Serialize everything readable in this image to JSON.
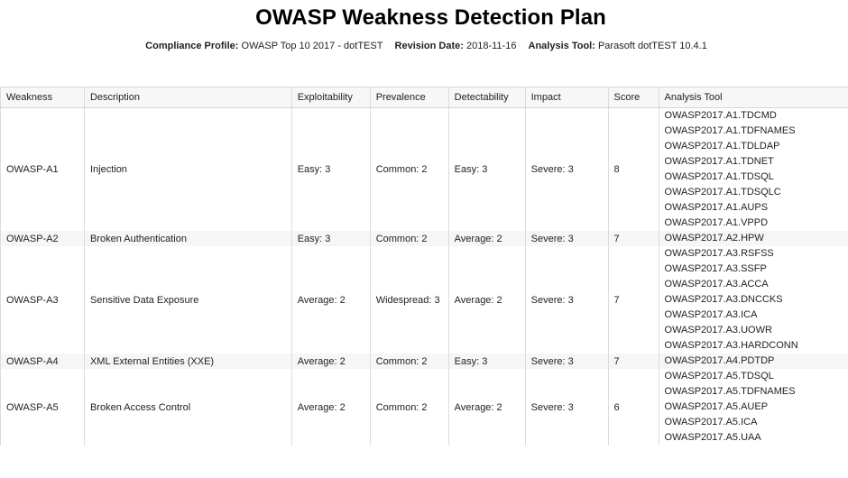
{
  "title": "OWASP Weakness Detection Plan",
  "meta": {
    "compliance_profile_label": "Compliance Profile:",
    "compliance_profile_value": "OWASP Top 10 2017 - dotTEST",
    "revision_date_label": "Revision Date:",
    "revision_date_value": "2018-11-16",
    "analysis_tool_label": "Analysis Tool:",
    "analysis_tool_value": "Parasoft dotTEST 10.4.1"
  },
  "table": {
    "headers": [
      "Weakness",
      "Description",
      "Exploitability",
      "Prevalence",
      "Detectability",
      "Impact",
      "Score",
      "Analysis Tool"
    ],
    "rows": [
      {
        "weakness": "OWASP-A1",
        "description": "Injection",
        "exploitability": "Easy: 3",
        "prevalence": "Common: 2",
        "detectability": "Easy: 3",
        "impact": "Severe: 3",
        "score": "8",
        "tools": [
          "OWASP2017.A1.TDCMD",
          "OWASP2017.A1.TDFNAMES",
          "OWASP2017.A1.TDLDAP",
          "OWASP2017.A1.TDNET",
          "OWASP2017.A1.TDSQL",
          "OWASP2017.A1.TDSQLC",
          "OWASP2017.A1.AUPS",
          "OWASP2017.A1.VPPD"
        ]
      },
      {
        "weakness": "OWASP-A2",
        "description": "Broken Authentication",
        "exploitability": "Easy: 3",
        "prevalence": "Common: 2",
        "detectability": "Average: 2",
        "impact": "Severe: 3",
        "score": "7",
        "tools": [
          "OWASP2017.A2.HPW"
        ]
      },
      {
        "weakness": "OWASP-A3",
        "description": "Sensitive Data Exposure",
        "exploitability": "Average: 2",
        "prevalence": "Widespread: 3",
        "detectability": "Average: 2",
        "impact": "Severe: 3",
        "score": "7",
        "tools": [
          "OWASP2017.A3.RSFSS",
          "OWASP2017.A3.SSFP",
          "OWASP2017.A3.ACCA",
          "OWASP2017.A3.DNCCKS",
          "OWASP2017.A3.ICA",
          "OWASP2017.A3.UOWR",
          "OWASP2017.A3.HARDCONN"
        ]
      },
      {
        "weakness": "OWASP-A4",
        "description": "XML External Entities (XXE)",
        "exploitability": "Average: 2",
        "prevalence": "Common: 2",
        "detectability": "Easy: 3",
        "impact": "Severe: 3",
        "score": "7",
        "tools": [
          "OWASP2017.A4.PDTDP"
        ]
      },
      {
        "weakness": "OWASP-A5",
        "description": "Broken Access Control",
        "exploitability": "Average: 2",
        "prevalence": "Common: 2",
        "detectability": "Average: 2",
        "impact": "Severe: 3",
        "score": "6",
        "tools": [
          "OWASP2017.A5.TDSQL",
          "OWASP2017.A5.TDFNAMES",
          "OWASP2017.A5.AUEP",
          "OWASP2017.A5.ICA",
          "OWASP2017.A5.UAA"
        ]
      }
    ]
  }
}
